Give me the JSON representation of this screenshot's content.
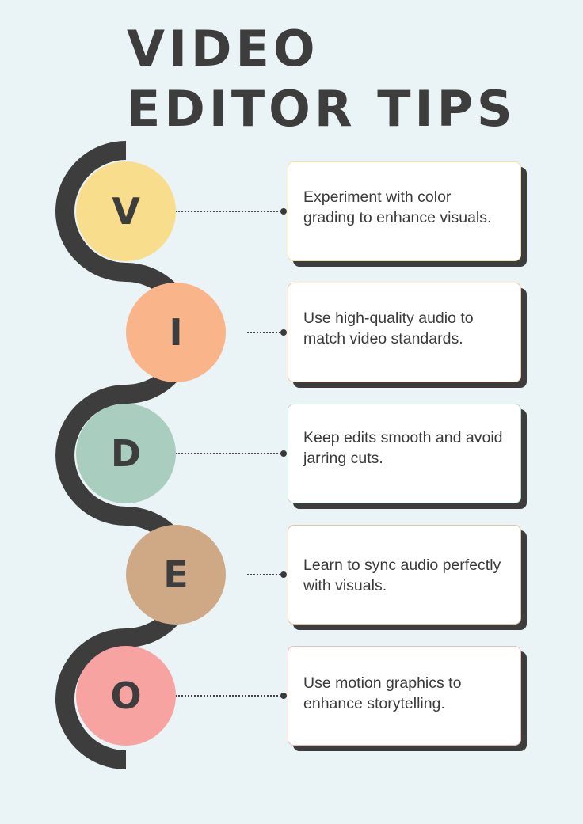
{
  "title": {
    "line1": "VIDEO",
    "line2": "EDITOR TIPS"
  },
  "colors": {
    "background": "#eaf3f5",
    "path": "#3d3d3d",
    "text": "#3d3d3d"
  },
  "steps": [
    {
      "letter": "V",
      "color": "#f8de8c",
      "border": "#f3e3a2",
      "tip": "Experiment with color grading to enhance visuals."
    },
    {
      "letter": "I",
      "color": "#f9b48a",
      "border": "#f5c6a8",
      "tip": "Use high-quality audio to match video standards."
    },
    {
      "letter": "D",
      "color": "#a9cdbf",
      "border": "#b8d8cc",
      "tip": "Keep edits smooth and avoid jarring cuts."
    },
    {
      "letter": "E",
      "color": "#cfa986",
      "border": "#e0c3a8",
      "tip": "Learn to sync audio perfectly with visuals."
    },
    {
      "letter": "O",
      "color": "#f6a3a2",
      "border": "#f3b8b7",
      "tip": "Use motion graphics to enhance storytelling."
    }
  ]
}
